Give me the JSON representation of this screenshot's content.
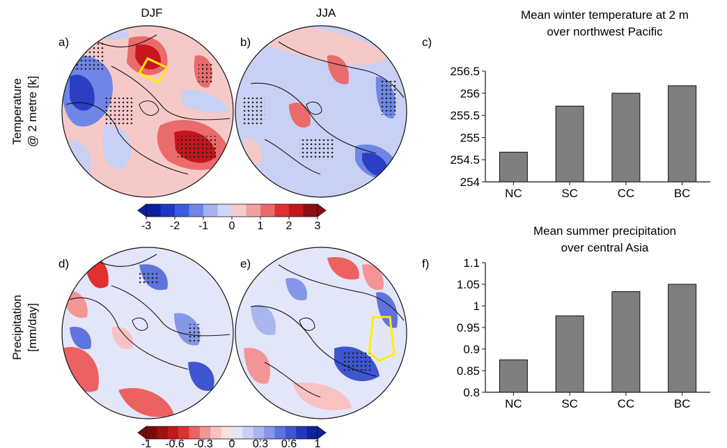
{
  "columns": {
    "djf": "DJF",
    "jja": "JJA"
  },
  "rows": {
    "temperature": [
      "Temperature",
      "@ 2 metre [k]"
    ],
    "precipitation": [
      "Precipitation",
      "[mm/day]"
    ]
  },
  "panels": {
    "a": "a)",
    "b": "b)",
    "c": "c)",
    "d": "d)",
    "e": "e)",
    "f": "f)"
  },
  "colorbars": {
    "temperature": {
      "ticks": [
        "-3",
        "-2",
        "-1",
        "0",
        "1",
        "2",
        "3"
      ],
      "colors": [
        "#0b1ea0",
        "#1c37c8",
        "#3d5be0",
        "#6e86e8",
        "#a3b3f0",
        "#cfd6f6",
        "#f7cccc",
        "#f2a1a1",
        "#ea6a6a",
        "#e02f2f",
        "#c3161b",
        "#8c0c12"
      ]
    },
    "precipitation": {
      "ticks": [
        "-1",
        "-0.6",
        "-0.3",
        "0",
        "0.3",
        "0.6",
        "1"
      ],
      "colors": [
        "#7a0a0a",
        "#a00f12",
        "#c4171c",
        "#e0302f",
        "#ec6262",
        "#f39595",
        "#f8c2c2",
        "#fbe0e0",
        "#e2e6f8",
        "#c9d2f4",
        "#a9b7ee",
        "#8597e6",
        "#5f74dc",
        "#3e56d0",
        "#2238bc",
        "#0f229c"
      ]
    }
  },
  "map_colors": {
    "neutral_blue": "#c8d0f4",
    "neutral_red": "#f6c9c9",
    "strong_red": "#c8141c",
    "mid_red": "#ea6b6b",
    "strong_blue": "#2a3fc4",
    "mid_blue": "#6f86e6",
    "box": "#ffee00"
  },
  "chart_data": [
    {
      "type": "bar",
      "title": [
        "Mean winter temperature at 2 m",
        "over northwest Pacific"
      ],
      "categories": [
        "NC",
        "SC",
        "CC",
        "BC"
      ],
      "values": [
        254.67,
        255.71,
        256.0,
        256.17
      ],
      "ylim": [
        254,
        256.5
      ],
      "yticks": [
        "254",
        "254.5",
        "255",
        "255.5",
        "256",
        "256.5"
      ],
      "bar_color": "#7f7f7f"
    },
    {
      "type": "bar",
      "title": [
        "Mean summer precipitation",
        "over central Asia"
      ],
      "categories": [
        "NC",
        "SC",
        "CC",
        "BC"
      ],
      "values": [
        0.875,
        0.977,
        1.033,
        1.05
      ],
      "ylim": [
        0.8,
        1.1
      ],
      "yticks": [
        "0.8",
        "0.85",
        "0.9",
        "0.95",
        "1",
        "1.05",
        "1.1"
      ],
      "bar_color": "#7f7f7f"
    }
  ]
}
